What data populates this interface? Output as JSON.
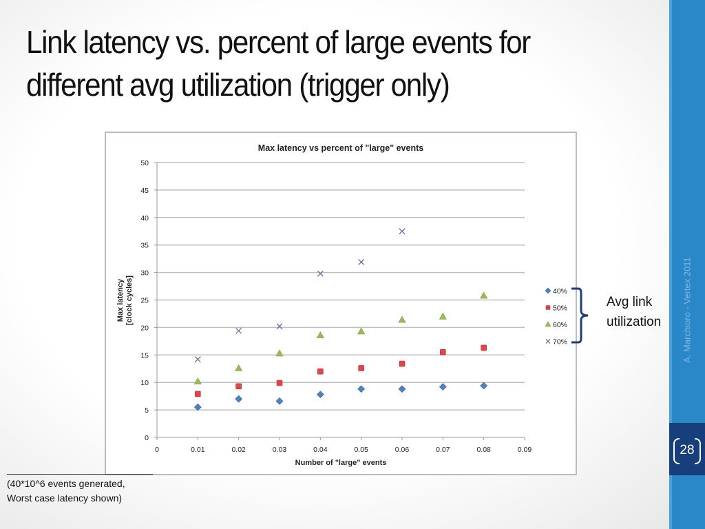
{
  "slide": {
    "title_lines": [
      "Link latency vs. percent of large events for",
      "different avg utilization (trigger only)"
    ],
    "credit": "A. Marchioro - Vertex 2011",
    "page_number": "28",
    "footnote_lines": [
      "(40*10^6 events generated,",
      "Worst case latency shown)"
    ],
    "annotation_lines": [
      "Avg link",
      "utilization"
    ],
    "colors": {
      "sidebar": "#2a87c8",
      "page_box": "#173f7c",
      "bracket": "#1f3d7a"
    }
  },
  "chart_data": {
    "type": "scatter",
    "title": "Max latency vs percent of \"large\" events",
    "xlabel": "Number of \"large\" events",
    "ylabel_lines": [
      "Max latency",
      "[clock cycles]"
    ],
    "xlim": [
      0,
      0.09
    ],
    "ylim": [
      0,
      50
    ],
    "x_ticks": [
      "0",
      "0.01",
      "0.02",
      "0.03",
      "0.04",
      "0.05",
      "0.06",
      "0.07",
      "0.08",
      "0.09"
    ],
    "y_ticks": [
      "0",
      "5",
      "10",
      "15",
      "20",
      "25",
      "30",
      "35",
      "40",
      "45",
      "50"
    ],
    "grid": "horizontal",
    "legend_position": "right",
    "series": [
      {
        "name": "40%",
        "marker": "diamond",
        "color": "#4f81bd",
        "x": [
          0.01,
          0.02,
          0.03,
          0.04,
          0.05,
          0.06,
          0.07,
          0.08
        ],
        "y": [
          5.5,
          7.0,
          6.6,
          7.8,
          8.8,
          8.8,
          9.2,
          9.4
        ]
      },
      {
        "name": "50%",
        "marker": "square",
        "color": "#e0454a",
        "x": [
          0.01,
          0.02,
          0.03,
          0.04,
          0.05,
          0.06,
          0.07,
          0.08
        ],
        "y": [
          7.9,
          9.3,
          9.9,
          12.0,
          12.6,
          13.4,
          15.5,
          16.3
        ]
      },
      {
        "name": "60%",
        "marker": "triangle",
        "color": "#9bbb59",
        "x": [
          0.01,
          0.02,
          0.03,
          0.04,
          0.05,
          0.06,
          0.07,
          0.08
        ],
        "y": [
          10.2,
          12.6,
          15.3,
          18.6,
          19.3,
          21.4,
          22.0,
          25.8
        ]
      },
      {
        "name": "70%",
        "marker": "x",
        "color": "#7f6fa8",
        "x": [
          0.01,
          0.02,
          0.03,
          0.04,
          0.05,
          0.06
        ],
        "y": [
          14.2,
          19.4,
          20.2,
          29.8,
          31.9,
          37.5
        ]
      }
    ]
  }
}
